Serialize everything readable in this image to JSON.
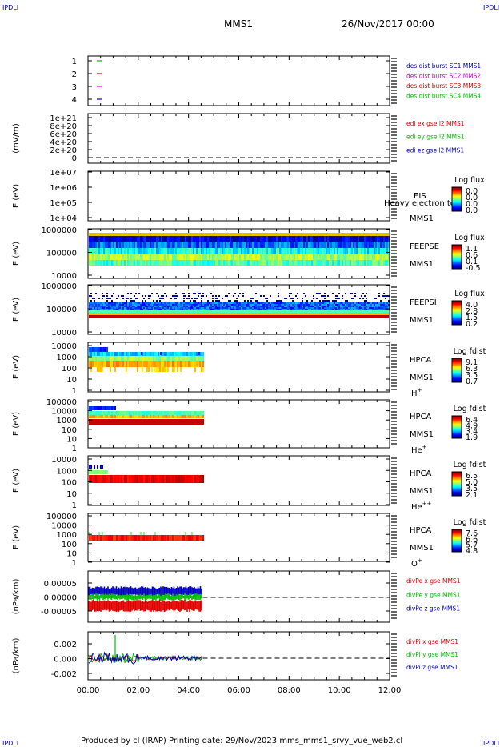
{
  "corners": {
    "tl": "IPDLI",
    "tr": "IPDLI",
    "bl": "IPDLI",
    "br": "IPDLI"
  },
  "header": {
    "spacecraft": "MMS1",
    "date": "26/Nov/2017 00:00"
  },
  "footer": {
    "text": "Produced by cl (IRAP)   Printing date: 29/Nov/2023   mms_mms1_srvy_vue_web2.cl"
  },
  "colors": {
    "red": "#e00000",
    "green": "#00c000",
    "blue": "#0000c0",
    "magenta": "#d000d0",
    "dash": "#000000"
  },
  "chart_data": [
    {
      "panel": "burst",
      "type": "line",
      "yticks": [
        "1",
        "2",
        "3",
        "4"
      ],
      "legend": [
        {
          "text": "des dist burst SC1 MMS1",
          "color": "#0000c0"
        },
        {
          "text": "des dist burst SC2 MMS2",
          "color": "#d000d0"
        },
        {
          "text": "des dist burst SC3 MMS3",
          "color": "#e00000"
        },
        {
          "text": "des dist burst SC4 MMS4",
          "color": "#00c000"
        }
      ]
    },
    {
      "panel": "edi",
      "type": "line",
      "ylabel": "(mV/m)",
      "yticks": [
        "1e+21",
        "8e+20",
        "6e+20",
        "4e+20",
        "2e+20",
        "0"
      ],
      "legend": [
        {
          "text": "edi ex gse l2 MMS1",
          "color": "#e00000"
        },
        {
          "text": "edi ey gse l2 MMS1",
          "color": "#00c000"
        },
        {
          "text": "edi ez gse l2 MMS1",
          "color": "#0000c0"
        }
      ]
    },
    {
      "panel": "eis",
      "type": "heatmap",
      "ylabel": "E (eV)",
      "yticks": [
        "1e+07",
        "1e+06",
        "1e+05",
        "1e+04"
      ],
      "instrument": "EIS",
      "spacecraft": "MMS1",
      "overlay": "Heavy electron to",
      "cbar_title": "Log flux",
      "cbar_ticks": [
        "0.0",
        "0.0",
        "0.0",
        "0.0"
      ]
    },
    {
      "panel": "feepse",
      "type": "heatmap",
      "ylabel": "E (eV)",
      "yticks": [
        "1000000",
        "100000",
        "10000"
      ],
      "instrument": "FEEPSE",
      "spacecraft": "MMS1",
      "cbar_title": "Log flux",
      "cbar_ticks": [
        "1.1",
        "0.6",
        "0.1",
        "-0.5"
      ]
    },
    {
      "panel": "feepsi",
      "type": "heatmap",
      "ylabel": "E (eV)",
      "yticks": [
        "1000000",
        "100000",
        "10000"
      ],
      "instrument": "FEEPSI",
      "spacecraft": "MMS1",
      "cbar_title": "Log flux",
      "cbar_ticks": [
        "4.0",
        "2.8",
        "1.5",
        "0.2"
      ]
    },
    {
      "panel": "hpca_h",
      "type": "heatmap",
      "ylabel": "E (eV)",
      "yticks": [
        "10000",
        "1000",
        "100",
        "10",
        "1"
      ],
      "instrument": "HPCA",
      "spacecraft": "MMS1",
      "species": "H",
      "charge": "+",
      "cbar_title": "Log fdist",
      "cbar_ticks": [
        "9.1",
        "6.3",
        "3.5",
        "0.7"
      ]
    },
    {
      "panel": "hpca_he",
      "type": "heatmap",
      "ylabel": "E (eV)",
      "yticks": [
        "100000",
        "10000",
        "1000",
        "100",
        "10",
        "1"
      ],
      "instrument": "HPCA",
      "spacecraft": "MMS1",
      "species": "He",
      "charge": "+",
      "cbar_title": "Log fdist",
      "cbar_ticks": [
        "6.4",
        "4.9",
        "3.4",
        "1.9"
      ]
    },
    {
      "panel": "hpca_hepp",
      "type": "heatmap",
      "ylabel": "E (eV)",
      "yticks": [
        "10000",
        "1000",
        "100",
        "10",
        "1"
      ],
      "instrument": "HPCA",
      "spacecraft": "MMS1",
      "species": "He",
      "charge": "++",
      "cbar_title": "Log fdist",
      "cbar_ticks": [
        "6.5",
        "5.0",
        "3.5",
        "2.1"
      ]
    },
    {
      "panel": "hpca_o",
      "type": "heatmap",
      "ylabel": "E (eV)",
      "yticks": [
        "100000",
        "10000",
        "1000",
        "100",
        "10",
        "1"
      ],
      "instrument": "HPCA",
      "spacecraft": "MMS1",
      "species": "O",
      "charge": "+",
      "cbar_title": "Log fdist",
      "cbar_ticks": [
        "7.6",
        "6.6",
        "5.7",
        "4.8"
      ]
    },
    {
      "panel": "divpe",
      "type": "line",
      "ylabel": "(nPa/km)",
      "yticks": [
        "0.00005",
        "0.00000",
        "-0.00005"
      ],
      "legend": [
        {
          "text": "divPe x gse MMS1",
          "color": "#e00000"
        },
        {
          "text": "divPe y gse MMS1",
          "color": "#00c000"
        },
        {
          "text": "divPe z gse MMS1",
          "color": "#0000c0"
        }
      ]
    },
    {
      "panel": "divpi",
      "type": "line",
      "ylabel": "(nPa/km)",
      "yticks": [
        "0.002",
        "0.000",
        "-0.002"
      ],
      "legend": [
        {
          "text": "divPi x gse MMS1",
          "color": "#e00000"
        },
        {
          "text": "divPi y gse MMS1",
          "color": "#00c000"
        },
        {
          "text": "divPi z gse MMS1",
          "color": "#0000c0"
        }
      ]
    }
  ],
  "xaxis": {
    "ticks": [
      "00:00",
      "02:00",
      "04:00",
      "06:00",
      "08:00",
      "10:00",
      "12:00"
    ],
    "data_end": "04:34"
  }
}
